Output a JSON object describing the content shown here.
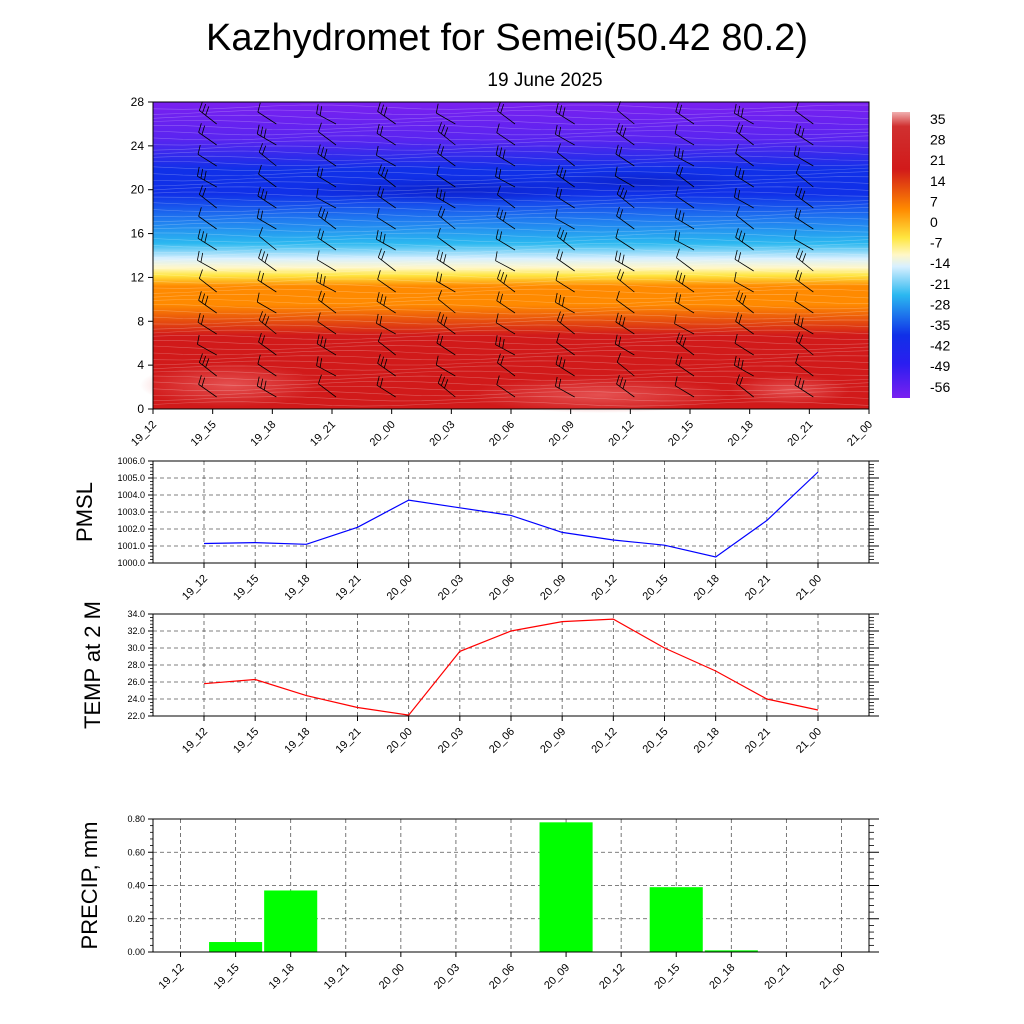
{
  "title": "Kazhydromet for Semei(50.42 80.2)",
  "subtitle": "19 June 2025",
  "times": [
    "19_12",
    "19_15",
    "19_18",
    "19_21",
    "20_00",
    "20_03",
    "20_06",
    "20_09",
    "20_12",
    "20_15",
    "20_18",
    "20_21",
    "21_00"
  ],
  "chart_data": [
    {
      "type": "heatmap",
      "ylim": [
        0,
        28
      ],
      "yticks": [
        "0",
        "4",
        "8",
        "12",
        "16",
        "20",
        "24",
        "28"
      ],
      "colorbar_labels": [
        "35",
        "28",
        "21",
        "14",
        "7",
        "0",
        "-7",
        "-14",
        "-21",
        "-28",
        "-35",
        "-42",
        "-49",
        "-56"
      ],
      "colorbar_range": [
        -63,
        42
      ],
      "colors": {
        "hot": "#d11a1a",
        "warm": "#ff8a00",
        "yellow": "#ffe640",
        "pale": "#fff7c8",
        "cyan": "#2bb8f0",
        "blue": "#1030e8",
        "violet": "#7a20f0"
      },
      "overlay": "wind-barbs"
    },
    {
      "type": "line",
      "ylabel": "PMSL",
      "ylim": [
        1000.0,
        1006.0
      ],
      "yticks": [
        "1000.0",
        "1001.0",
        "1002.0",
        "1003.0",
        "1004.0",
        "1005.0",
        "1006.0"
      ],
      "values": [
        1001.15,
        1001.2,
        1001.1,
        1002.1,
        1003.7,
        1003.25,
        1002.8,
        1001.8,
        1001.35,
        1001.05,
        1000.35,
        1002.5,
        1005.35
      ],
      "color": "#0000ff"
    },
    {
      "type": "line",
      "ylabel": "TEMP at 2 M",
      "ylim": [
        22.0,
        34.0
      ],
      "yticks": [
        "22.0",
        "24.0",
        "26.0",
        "28.0",
        "30.0",
        "32.0",
        "34.0"
      ],
      "values": [
        25.8,
        26.3,
        24.4,
        23.0,
        22.1,
        29.6,
        32.0,
        33.1,
        33.4,
        30.0,
        27.3,
        24.0,
        22.7
      ],
      "color": "#ff0000"
    },
    {
      "type": "bar",
      "ylabel": "PRECIP, mm",
      "ylim": [
        0.0,
        0.8
      ],
      "yticks": [
        "0.00",
        "0.20",
        "0.40",
        "0.60",
        "0.80"
      ],
      "values": [
        0.0,
        0.06,
        0.37,
        0.0,
        0.0,
        0.0,
        0.0,
        0.78,
        0.0,
        0.39,
        0.01,
        0.0,
        0.0
      ],
      "color": "#00ff00"
    }
  ]
}
